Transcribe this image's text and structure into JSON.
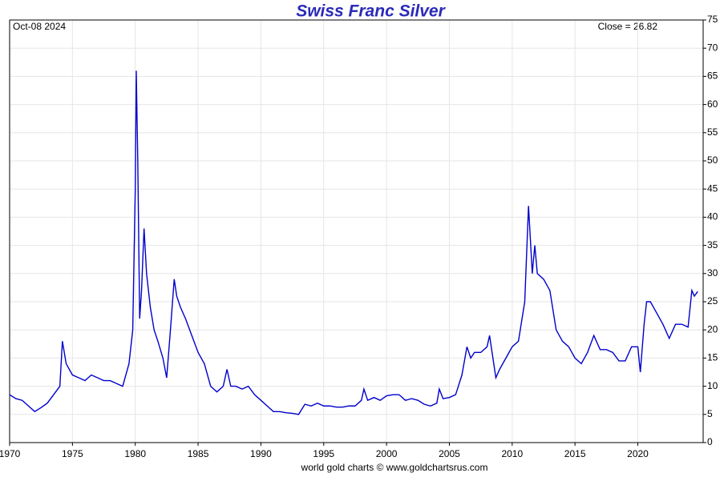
{
  "chart_data": {
    "type": "line",
    "title": "Swiss Franc Silver",
    "date_label": "Oct-08  2024",
    "close_label": "Close = 26.82",
    "source": "world gold charts © www.goldchartsrus.com",
    "xlim": [
      1970,
      2025.2
    ],
    "xticks": [
      1970,
      1975,
      1980,
      1985,
      1990,
      1995,
      2000,
      2005,
      2010,
      2015,
      2020
    ],
    "ylim": [
      0,
      75
    ],
    "yticks": [
      0,
      5,
      10,
      15,
      20,
      25,
      30,
      35,
      40,
      45,
      50,
      55,
      60,
      65,
      70,
      75
    ],
    "grid": true,
    "series": [
      {
        "name": "Swiss Franc Silver",
        "color": "#0000cc",
        "x": [
          1970,
          1970.5,
          1971,
          1971.5,
          1972,
          1972.5,
          1973,
          1973.5,
          1974,
          1974.2,
          1974.5,
          1975,
          1975.5,
          1976,
          1976.5,
          1977,
          1977.5,
          1978,
          1978.5,
          1979,
          1979.5,
          1979.8,
          1980.0,
          1980.08,
          1980.2,
          1980.35,
          1980.5,
          1980.7,
          1980.9,
          1981.2,
          1981.5,
          1981.8,
          1982.2,
          1982.5,
          1982.8,
          1983.1,
          1983.3,
          1983.6,
          1984,
          1984.5,
          1985,
          1985.5,
          1986,
          1986.5,
          1987,
          1987.3,
          1987.6,
          1988,
          1988.5,
          1989,
          1989.5,
          1990,
          1990.5,
          1991,
          1991.5,
          1992,
          1992.5,
          1993,
          1993.5,
          1994,
          1994.5,
          1995,
          1995.5,
          1996,
          1996.5,
          1997,
          1997.5,
          1998,
          1998.2,
          1998.5,
          1999,
          1999.5,
          2000,
          2000.5,
          2001,
          2001.5,
          2002,
          2002.5,
          2003,
          2003.5,
          2004,
          2004.2,
          2004.5,
          2005,
          2005.5,
          2006,
          2006.4,
          2006.7,
          2007,
          2007.5,
          2008,
          2008.2,
          2008.7,
          2009,
          2009.5,
          2010,
          2010.5,
          2011,
          2011.3,
          2011.6,
          2011.8,
          2012,
          2012.5,
          2013,
          2013.5,
          2014,
          2014.5,
          2015,
          2015.5,
          2016,
          2016.5,
          2017,
          2017.5,
          2018,
          2018.5,
          2019,
          2019.5,
          2020,
          2020.2,
          2020.5,
          2020.7,
          2021,
          2021.5,
          2022,
          2022.5,
          2023,
          2023.5,
          2024,
          2024.3,
          2024.5,
          2024.77
        ],
        "values": [
          8.5,
          7.8,
          7.5,
          6.5,
          5.5,
          6.2,
          7,
          8.5,
          10,
          18,
          14,
          12,
          11.5,
          11,
          12,
          11.5,
          11,
          11,
          10.5,
          10,
          14,
          20,
          45,
          66,
          50,
          22,
          27,
          38,
          30,
          24,
          20,
          18,
          15,
          11.5,
          20,
          29,
          26,
          24,
          22,
          19,
          16,
          14,
          10,
          9,
          10,
          13,
          10,
          10,
          9.5,
          10,
          8.5,
          7.5,
          6.5,
          5.5,
          5.5,
          5.3,
          5.2,
          5,
          6.8,
          6.5,
          7,
          6.5,
          6.5,
          6.3,
          6.3,
          6.5,
          6.5,
          7.5,
          9.5,
          7.5,
          8,
          7.5,
          8.3,
          8.5,
          8.5,
          7.5,
          7.8,
          7.5,
          6.8,
          6.5,
          7,
          9.5,
          7.8,
          8,
          8.5,
          12,
          17,
          15,
          16,
          16,
          17,
          19,
          11.5,
          13,
          15,
          17,
          18,
          25,
          42,
          30,
          35,
          30,
          29,
          27,
          20,
          18,
          17,
          15,
          14,
          16,
          19,
          16.5,
          16.5,
          16,
          14.5,
          14.5,
          17,
          17,
          12.5,
          21,
          25,
          25,
          23,
          21,
          18.5,
          21,
          21,
          20.5,
          27,
          26,
          26.82
        ]
      }
    ]
  }
}
